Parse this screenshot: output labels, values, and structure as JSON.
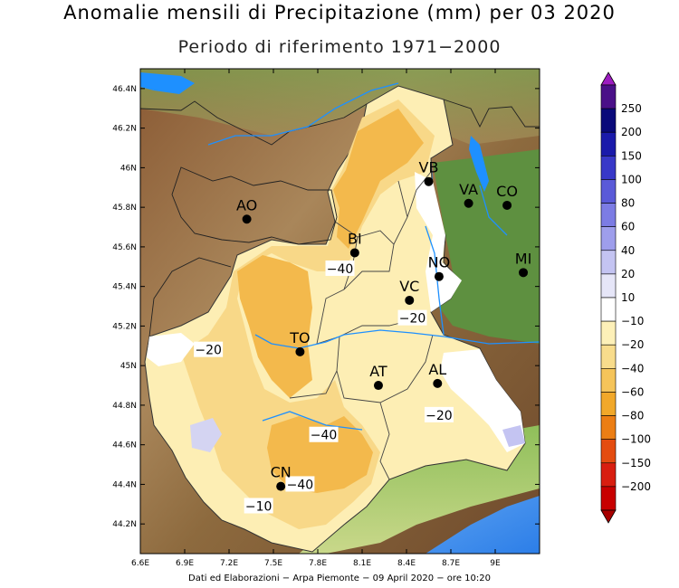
{
  "title": "Anomalie mensili di Precipitazione (mm) per 03 2020",
  "subtitle": "Periodo di riferimento 1971−2000",
  "credits": "Dati ed Elaborazioni − Arpa Piemonte − 09 April 2020 − ore 10:20",
  "lat_ticks": [
    "46.4N",
    "46.2N",
    "46N",
    "45.8N",
    "45.6N",
    "45.4N",
    "45.2N",
    "45N",
    "44.8N",
    "44.6N",
    "44.4N",
    "44.2N"
  ],
  "lon_ticks": [
    "6.6E",
    "6.9E",
    "7.2E",
    "7.5E",
    "7.8E",
    "8.1E",
    "8.4E",
    "8.7E",
    "9E"
  ],
  "cities": [
    {
      "label": "AO",
      "lon": 7.32,
      "lat": 45.74
    },
    {
      "label": "BI",
      "lon": 8.05,
      "lat": 45.57
    },
    {
      "label": "VB",
      "lon": 8.55,
      "lat": 45.93
    },
    {
      "label": "VA",
      "lon": 8.82,
      "lat": 45.82
    },
    {
      "label": "CO",
      "lon": 9.08,
      "lat": 45.81
    },
    {
      "label": "NO",
      "lon": 8.62,
      "lat": 45.45
    },
    {
      "label": "MI",
      "lon": 9.19,
      "lat": 45.47
    },
    {
      "label": "VC",
      "lon": 8.42,
      "lat": 45.33
    },
    {
      "label": "TO",
      "lon": 7.68,
      "lat": 45.07
    },
    {
      "label": "AT",
      "lon": 8.21,
      "lat": 44.9
    },
    {
      "label": "AL",
      "lon": 8.61,
      "lat": 44.91
    },
    {
      "label": "CN",
      "lon": 7.55,
      "lat": 44.39
    }
  ],
  "contour_labels": [
    {
      "text": "−40",
      "lon": 7.95,
      "lat": 45.49
    },
    {
      "text": "−20",
      "lon": 8.44,
      "lat": 45.24
    },
    {
      "text": "−20",
      "lon": 7.06,
      "lat": 45.08
    },
    {
      "text": "−20",
      "lon": 8.62,
      "lat": 44.75
    },
    {
      "text": "−40",
      "lon": 7.84,
      "lat": 44.65
    },
    {
      "text": "−40",
      "lon": 7.68,
      "lat": 44.4
    },
    {
      "text": "−10",
      "lon": 7.4,
      "lat": 44.29
    }
  ],
  "legend": {
    "labels": [
      "250",
      "200",
      "150",
      "100",
      "80",
      "60",
      "40",
      "20",
      "10",
      "−10",
      "−20",
      "−40",
      "−60",
      "−80",
      "−100",
      "−150",
      "−200"
    ],
    "colors": [
      "#4a1088",
      "#0a0a7a",
      "#1a1aaa",
      "#3838c8",
      "#5a5ad8",
      "#7c7ce4",
      "#9e9eec",
      "#c4c4f2",
      "#e6e6f8",
      "#ffffff",
      "#fdf0b8",
      "#f8dc8c",
      "#f5c45a",
      "#f1a82a",
      "#ec7e14",
      "#e44c10",
      "#d81e10",
      "#c80000"
    ],
    "top_arrow": "#9c1cc0",
    "bottom_arrow": "#a80000"
  },
  "colors": {
    "relief_low": "#5f8a3a",
    "relief_mid": "#9a7a44",
    "relief_high": "#7a4a2a",
    "water": "#1e90ff",
    "lombardia_plain": "#5e9040",
    "anomaly_light": "#fdeeb4",
    "anomaly_mid": "#f8d888",
    "anomaly_strong": "#f3b94c"
  }
}
